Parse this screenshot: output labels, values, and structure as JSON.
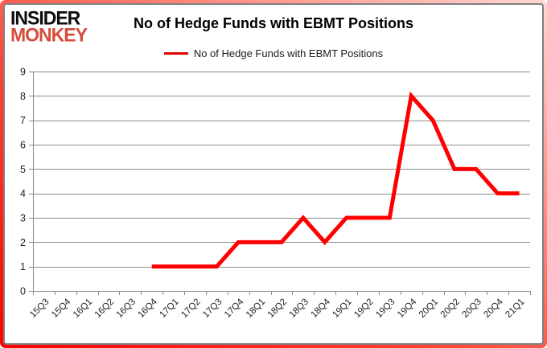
{
  "brand": {
    "line1": "INSIDER",
    "line2": "MONKEY"
  },
  "header": {
    "title": "No of Hedge Funds with EBMT Positions"
  },
  "legend": {
    "label": "No of Hedge Funds with EBMT Positions",
    "marker_color": "#e00000"
  },
  "chart_data": {
    "type": "line",
    "title": "No of Hedge Funds with EBMT Positions",
    "categories": [
      "15Q3",
      "15Q4",
      "16Q1",
      "16Q2",
      "16Q3",
      "16Q4",
      "17Q1",
      "17Q2",
      "17Q3",
      "17Q4",
      "18Q1",
      "18Q2",
      "18Q3",
      "18Q4",
      "19Q1",
      "19Q2",
      "19Q3",
      "19Q4",
      "20Q1",
      "20Q2",
      "20Q3",
      "20Q4",
      "21Q1"
    ],
    "series": [
      {
        "name": "No of Hedge Funds with EBMT Positions",
        "color": "#ff0000",
        "values": [
          null,
          null,
          null,
          null,
          null,
          1,
          1,
          1,
          1,
          2,
          2,
          2,
          3,
          2,
          3,
          3,
          3,
          8,
          7,
          5,
          5,
          4,
          4
        ]
      }
    ],
    "xlabel": "",
    "ylabel": "",
    "ylim": [
      0,
      9
    ],
    "yticks": [
      0,
      1,
      2,
      3,
      4,
      5,
      6,
      7,
      8,
      9
    ],
    "grid": "horizontal",
    "legend_position": "top-center",
    "x_label_rotation_deg": 45
  },
  "colors": {
    "line": "#ff0000",
    "grid": "#8c8c8c",
    "axis": "#8c8c8c",
    "tick_text": "#1f1f1f",
    "logo_accent": "#d54c3b",
    "frame_border": "#7f7f7f"
  }
}
